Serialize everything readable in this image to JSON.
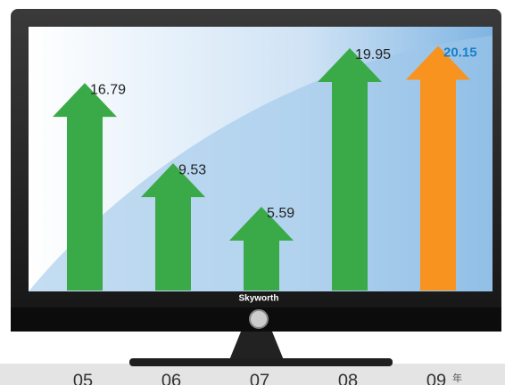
{
  "brand": "Skyworth",
  "chart_data": {
    "type": "arrow",
    "categories": [
      "05",
      "06",
      "07",
      "08",
      "09"
    ],
    "unit_label": "年",
    "values": [
      16.79,
      9.53,
      5.59,
      19.95,
      20.15
    ],
    "colors": [
      "#3aaa48",
      "#3aaa48",
      "#3aaa48",
      "#3aaa48",
      "#f7931e"
    ],
    "label_colors": [
      "#222222",
      "#222222",
      "#222222",
      "#222222",
      "#1a7fc8"
    ],
    "ylim": [
      -2,
      21
    ]
  }
}
